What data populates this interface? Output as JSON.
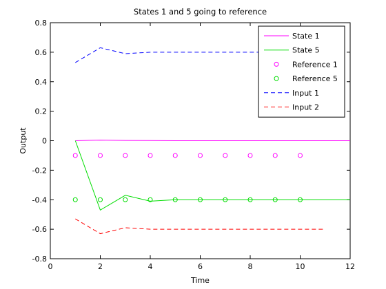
{
  "chart_data": {
    "type": "line",
    "title": "States 1 and 5 going to reference",
    "xlabel": "Time",
    "ylabel": "Output",
    "xlim": [
      0,
      12
    ],
    "ylim": [
      -0.8,
      0.8
    ],
    "x_ticks": [
      "0",
      "2",
      "4",
      "6",
      "8",
      "10",
      "12"
    ],
    "y_ticks": [
      "0.8",
      "0.6",
      "0.4",
      "0.2",
      "0",
      "-0.2",
      "-0.4",
      "-0.6",
      "-0.8"
    ],
    "grid": false,
    "legend_position": "top-right",
    "series": [
      {
        "name": "State 1",
        "style": "solid",
        "color": "#ff00ff",
        "x": [
          1,
          2,
          3,
          4,
          5,
          6,
          7,
          8,
          9,
          10,
          11,
          12
        ],
        "y": [
          0,
          0.004,
          0.002,
          0.001,
          0,
          0,
          0,
          0,
          0,
          0,
          0,
          0
        ]
      },
      {
        "name": "State 5",
        "style": "solid",
        "color": "#00dd00",
        "x": [
          1,
          2,
          3,
          4,
          5,
          6,
          7,
          8,
          9,
          10,
          11,
          12
        ],
        "y": [
          0,
          -0.47,
          -0.37,
          -0.41,
          -0.4,
          -0.4,
          -0.4,
          -0.4,
          -0.4,
          -0.4,
          -0.4,
          -0.4
        ]
      },
      {
        "name": "Reference 1",
        "style": "marker",
        "color": "#ff00ff",
        "x": [
          1,
          2,
          3,
          4,
          5,
          6,
          7,
          8,
          9,
          10
        ],
        "y": [
          -0.1,
          -0.1,
          -0.1,
          -0.1,
          -0.1,
          -0.1,
          -0.1,
          -0.1,
          -0.1,
          -0.1
        ]
      },
      {
        "name": "Reference 5",
        "style": "marker",
        "color": "#00dd00",
        "x": [
          1,
          2,
          3,
          4,
          5,
          6,
          7,
          8,
          9,
          10
        ],
        "y": [
          -0.4,
          -0.4,
          -0.4,
          -0.4,
          -0.4,
          -0.4,
          -0.4,
          -0.4,
          -0.4,
          -0.4
        ]
      },
      {
        "name": "Input 1",
        "style": "dashed",
        "color": "#0000ff",
        "x": [
          1,
          2,
          3,
          4,
          5,
          6,
          7,
          8,
          9,
          10,
          11
        ],
        "y": [
          0.53,
          0.63,
          0.59,
          0.6,
          0.6,
          0.6,
          0.6,
          0.6,
          0.6,
          0.6,
          0.6
        ]
      },
      {
        "name": "Input 2",
        "style": "dashed",
        "color": "#ff0000",
        "x": [
          1,
          2,
          3,
          4,
          5,
          6,
          7,
          8,
          9,
          10,
          11
        ],
        "y": [
          -0.53,
          -0.63,
          -0.59,
          -0.6,
          -0.6,
          -0.6,
          -0.6,
          -0.6,
          -0.6,
          -0.6,
          -0.6
        ]
      }
    ]
  }
}
